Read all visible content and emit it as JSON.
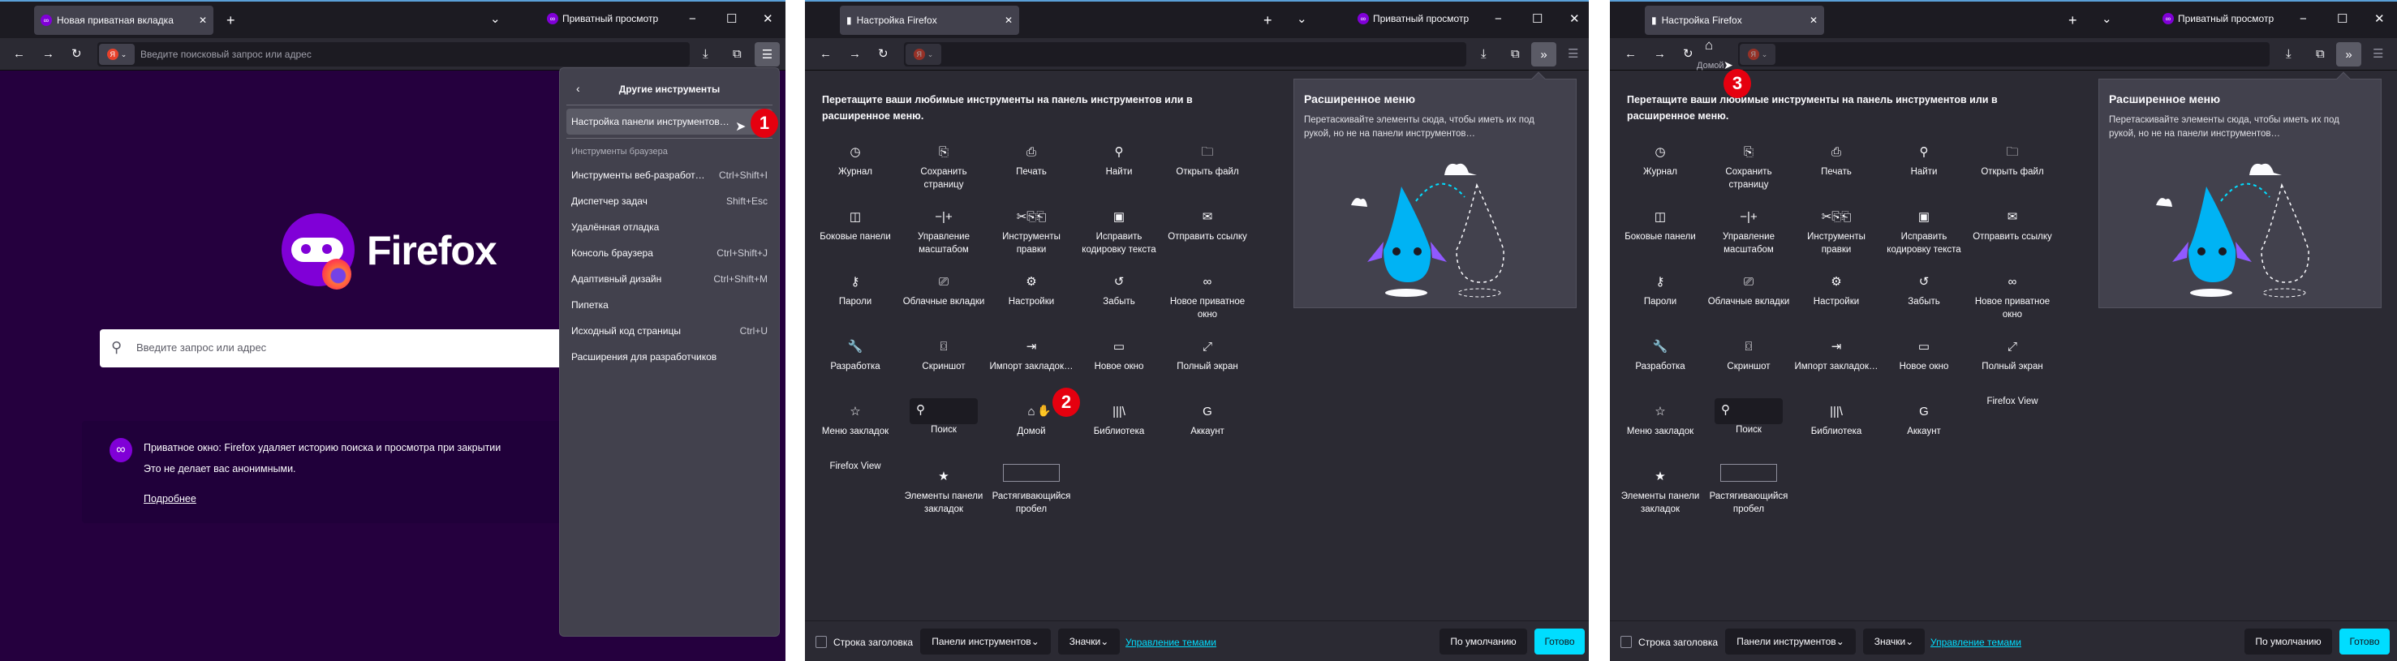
{
  "colors": {
    "accent": "#00ddff",
    "private_bg": "#25003e",
    "panel_bg": "#42414d",
    "content_bg": "#2b2a33",
    "badge": "#e5000f"
  },
  "window_controls": {
    "private_label": "Приватный просмотр",
    "minimize_icon": "minimize-icon",
    "maximize_icon": "maximize-icon",
    "close_icon": "close-icon"
  },
  "panel1": {
    "tab_title": "Новая приватная вкладка",
    "url_placeholder": "Введите поисковый запрос или адрес",
    "engine_letter": "Я",
    "brand": "Firefox",
    "search_placeholder": "Введите запрос или адрес",
    "notice": {
      "line1": "Приватное окно: Firefox удаляет историю поиска и просмотра при закрытии",
      "line2": "Это не делает вас анонимными.",
      "link": "Подробнее"
    },
    "menu": {
      "title": "Другие инструменты",
      "highlighted": "Настройка панели инструментов…",
      "section": "Инструменты браузера",
      "items": [
        {
          "label": "Инструменты веб-разработ…",
          "shortcut": "Ctrl+Shift+I"
        },
        {
          "label": "Диспетчер задач",
          "shortcut": "Shift+Esc"
        },
        {
          "label": "Удалённая отладка",
          "shortcut": ""
        },
        {
          "label": "Консоль браузера",
          "shortcut": "Ctrl+Shift+J"
        },
        {
          "label": "Адаптивный дизайн",
          "shortcut": "Ctrl+Shift+M"
        },
        {
          "label": "Пипетка",
          "shortcut": ""
        },
        {
          "label": "Исходный код страницы",
          "shortcut": "Ctrl+U"
        },
        {
          "label": "Расширения для разработчиков",
          "shortcut": ""
        }
      ]
    },
    "badge": "1"
  },
  "customize": {
    "tab_title": "Настройка Firefox",
    "heading_line1": "Перетащите ваши любимые инструменты на панель инструментов или в",
    "heading_line2": "расширенное меню.",
    "overflow_title": "Расширенное меню",
    "overflow_desc_line1": "Перетаскивайте элементы сюда, чтобы иметь их под",
    "overflow_desc_line2": "рукой, но не на панели инструментов…",
    "footer": {
      "titlebar_label": "Строка заголовка",
      "titlebar_checked": false,
      "toolbars": "Панели инструментов",
      "density": "Значки",
      "themes_link": "Управление темами",
      "default_btn": "По умолчанию",
      "done_btn": "Готово"
    }
  },
  "panel2": {
    "badge": "2",
    "items": [
      {
        "label": "Журнал",
        "icon": "history-icon",
        "g": "◷"
      },
      {
        "label": "Сохранить страницу",
        "icon": "save-page-icon",
        "g": "⎘"
      },
      {
        "label": "Печать",
        "icon": "print-icon",
        "g": "⎙"
      },
      {
        "label": "Найти",
        "icon": "find-icon",
        "g": "⚲"
      },
      {
        "label": "Открыть файл",
        "icon": "open-file-icon",
        "g": "🗀"
      },
      {
        "label": "Боковые панели",
        "icon": "sidebar-icon",
        "g": "◫"
      },
      {
        "label": "Управление масштабом",
        "icon": "zoom-controls-icon",
        "g": "−|+"
      },
      {
        "label": "Инструменты правки",
        "icon": "edit-controls-icon",
        "g": "✂⎘⎗"
      },
      {
        "label": "Исправить кодировку текста",
        "icon": "text-encoding-icon",
        "g": "▣"
      },
      {
        "label": "Отправить ссылку",
        "icon": "email-link-icon",
        "g": "✉"
      },
      {
        "label": "Пароли",
        "icon": "key-icon",
        "g": "⚷"
      },
      {
        "label": "Облачные вкладки",
        "icon": "synced-tabs-icon",
        "g": "⎚"
      },
      {
        "label": "Настройки",
        "icon": "gear-icon",
        "g": "⚙"
      },
      {
        "label": "Забыть",
        "icon": "forget-icon",
        "g": "↺"
      },
      {
        "label": "Новое приватное окно",
        "icon": "private-mask-icon",
        "g": "∞"
      },
      {
        "label": "Разработка",
        "icon": "wrench-icon",
        "g": "🔧"
      },
      {
        "label": "Скриншот",
        "icon": "screenshot-icon",
        "g": "⌼"
      },
      {
        "label": "Импорт закладок…",
        "icon": "import-icon",
        "g": "⇥"
      },
      {
        "label": "Новое окно",
        "icon": "new-window-icon",
        "g": "▭"
      },
      {
        "label": "Полный экран",
        "icon": "fullscreen-icon",
        "g": "⤢"
      },
      {
        "label": "Меню закладок",
        "icon": "bookmarks-menu-icon",
        "g": "☆"
      },
      {
        "label": "Поиск",
        "icon": "search-icon",
        "g": "⚲",
        "field": true
      },
      {
        "label": "Домой",
        "icon": "home-icon",
        "g": "⌂"
      },
      {
        "label": "Библиотека",
        "icon": "library-icon",
        "g": "|||\\"
      },
      {
        "label": "Аккаунт",
        "icon": "account-icon",
        "g": "G"
      },
      {
        "label": "Firefox View",
        "icon": "",
        "g": ""
      },
      {
        "label": "Элементы панели закладок",
        "icon": "bookmarks-toolbar-icon",
        "g": "★"
      },
      {
        "label": "Растягивающийся пробел",
        "icon": "",
        "g": "",
        "spring": true
      }
    ]
  },
  "panel3": {
    "badge": "3",
    "home_tooltip": "Домой",
    "items": [
      {
        "label": "Журнал",
        "icon": "history-icon",
        "g": "◷"
      },
      {
        "label": "Сохранить страницу",
        "icon": "save-page-icon",
        "g": "⎘"
      },
      {
        "label": "Печать",
        "icon": "print-icon",
        "g": "⎙"
      },
      {
        "label": "Найти",
        "icon": "find-icon",
        "g": "⚲"
      },
      {
        "label": "Открыть файл",
        "icon": "open-file-icon",
        "g": "🗀"
      },
      {
        "label": "Боковые панели",
        "icon": "sidebar-icon",
        "g": "◫"
      },
      {
        "label": "Управление масштабом",
        "icon": "zoom-controls-icon",
        "g": "−|+"
      },
      {
        "label": "Инструменты правки",
        "icon": "edit-controls-icon",
        "g": "✂⎘⎗"
      },
      {
        "label": "Исправить кодировку текста",
        "icon": "text-encoding-icon",
        "g": "▣"
      },
      {
        "label": "Отправить ссылку",
        "icon": "email-link-icon",
        "g": "✉"
      },
      {
        "label": "Пароли",
        "icon": "key-icon",
        "g": "⚷"
      },
      {
        "label": "Облачные вкладки",
        "icon": "synced-tabs-icon",
        "g": "⎚"
      },
      {
        "label": "Настройки",
        "icon": "gear-icon",
        "g": "⚙"
      },
      {
        "label": "Забыть",
        "icon": "forget-icon",
        "g": "↺"
      },
      {
        "label": "Новое приватное окно",
        "icon": "private-mask-icon",
        "g": "∞"
      },
      {
        "label": "Разработка",
        "icon": "wrench-icon",
        "g": "🔧"
      },
      {
        "label": "Скриншот",
        "icon": "screenshot-icon",
        "g": "⌼"
      },
      {
        "label": "Импорт закладок…",
        "icon": "import-icon",
        "g": "⇥"
      },
      {
        "label": "Новое окно",
        "icon": "new-window-icon",
        "g": "▭"
      },
      {
        "label": "Полный экран",
        "icon": "fullscreen-icon",
        "g": "⤢"
      },
      {
        "label": "Меню закладок",
        "icon": "bookmarks-menu-icon",
        "g": "☆"
      },
      {
        "label": "Поиск",
        "icon": "search-icon",
        "g": "⚲",
        "field": true
      },
      {
        "label": "Библиотека",
        "icon": "library-icon",
        "g": "|||\\"
      },
      {
        "label": "Аккаунт",
        "icon": "account-icon",
        "g": "G"
      },
      {
        "label": "Firefox View",
        "icon": "",
        "g": ""
      },
      {
        "label": "Элементы панели закладок",
        "icon": "bookmarks-toolbar-icon",
        "g": "★"
      },
      {
        "label": "Растягивающийся пробел",
        "icon": "",
        "g": "",
        "spring": true
      }
    ]
  }
}
